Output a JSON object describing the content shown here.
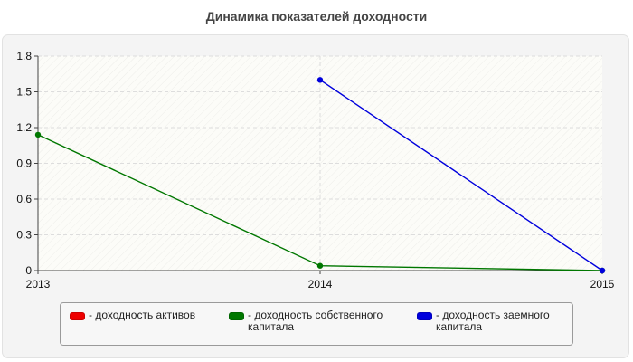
{
  "chart_data": {
    "type": "line",
    "title": "Динамика показателей доходности",
    "x": [
      "2013",
      "2014",
      "2015"
    ],
    "ylim": [
      0,
      1.8
    ],
    "yticks": [
      "0",
      "0.3",
      "0.6",
      "0.9",
      "1.2",
      "1.5",
      "1.8"
    ],
    "grid": true,
    "legend_position": "bottom",
    "series": [
      {
        "name": "- доходность активов",
        "color": "#ee0000",
        "values": [
          null,
          null,
          null
        ]
      },
      {
        "name": "- доходность собственного капитала",
        "color": "#007700",
        "values": [
          1.14,
          0.04,
          0.0
        ]
      },
      {
        "name": "- доходность заемного капитала",
        "color": "#0000dd",
        "values": [
          null,
          1.6,
          0.0
        ]
      }
    ]
  }
}
